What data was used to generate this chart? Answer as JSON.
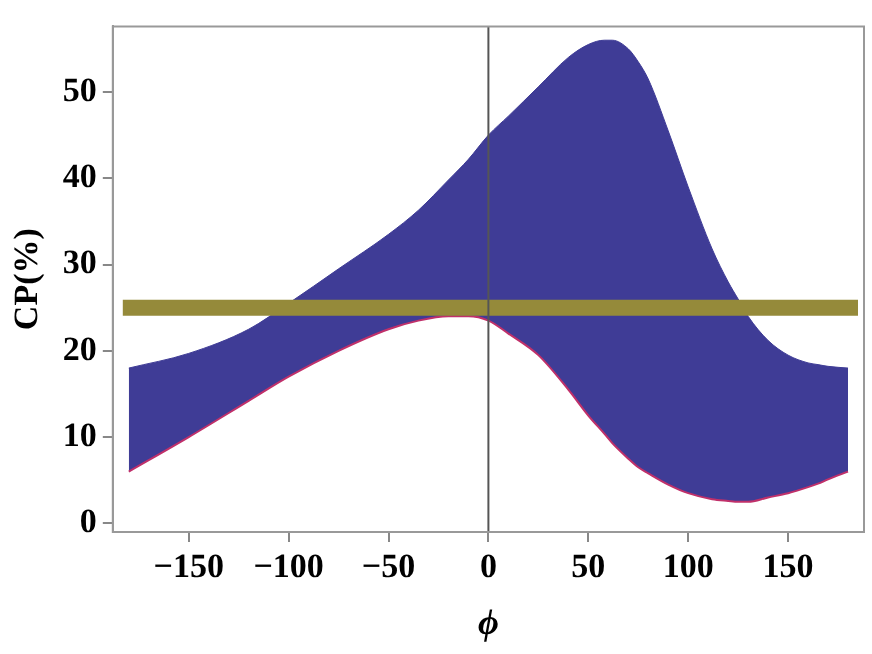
{
  "chart_data": {
    "type": "area",
    "xlabel": "ϕ",
    "ylabel": "CP(%)",
    "xlim": [
      -188,
      188
    ],
    "ylim": [
      -1,
      57.6
    ],
    "xticks": [
      -150,
      -100,
      -50,
      0,
      50,
      100,
      150
    ],
    "yticks": [
      0,
      10,
      20,
      30,
      40,
      50
    ],
    "grid": false,
    "legend": false,
    "series": [
      {
        "color": "#3f3c96",
        "x": [
          -180,
          -150,
          -120,
          -100,
          -75,
          -50,
          -35,
          -20,
          -10,
          0,
          10,
          25,
          40,
          50,
          58,
          62,
          70,
          75,
          80,
          90,
          100,
          112,
          120,
          125,
          130,
          140,
          150,
          160,
          165,
          170,
          180
        ],
        "values": [
          18,
          19.7,
          22.5,
          25.5,
          29.5,
          33.5,
          36.3,
          39.8,
          42.2,
          45,
          47.2,
          50.6,
          54,
          55.5,
          56,
          56,
          55,
          53.5,
          51.5,
          45.5,
          39,
          31.8,
          28,
          26,
          24,
          21.2,
          19.5,
          18.6,
          18.4,
          18.2,
          18
        ]
      },
      {
        "type": "line",
        "color": "#c0306a",
        "x": [
          -180,
          -150,
          -120,
          -100,
          -75,
          -50,
          -35,
          -20,
          -10,
          0,
          10,
          25,
          40,
          50,
          58,
          62,
          70,
          75,
          80,
          90,
          100,
          112,
          120,
          125,
          130,
          140,
          150,
          160,
          165,
          170,
          180
        ],
        "values": [
          6,
          10,
          14.2,
          17,
          20,
          22.5,
          23.5,
          24,
          24,
          23.5,
          22,
          19.5,
          15.5,
          12.5,
          10.4,
          9.3,
          7.5,
          6.5,
          5.8,
          4.5,
          3.5,
          2.8,
          2.6,
          2.5,
          2.5,
          3,
          3.5,
          4.2,
          4.6,
          5.1,
          6
        ]
      }
    ],
    "ref_lines": [
      {
        "axis": "y",
        "value": 25,
        "color": "#958a3a"
      },
      {
        "axis": "x",
        "value": 0,
        "color": "#555555"
      }
    ]
  }
}
